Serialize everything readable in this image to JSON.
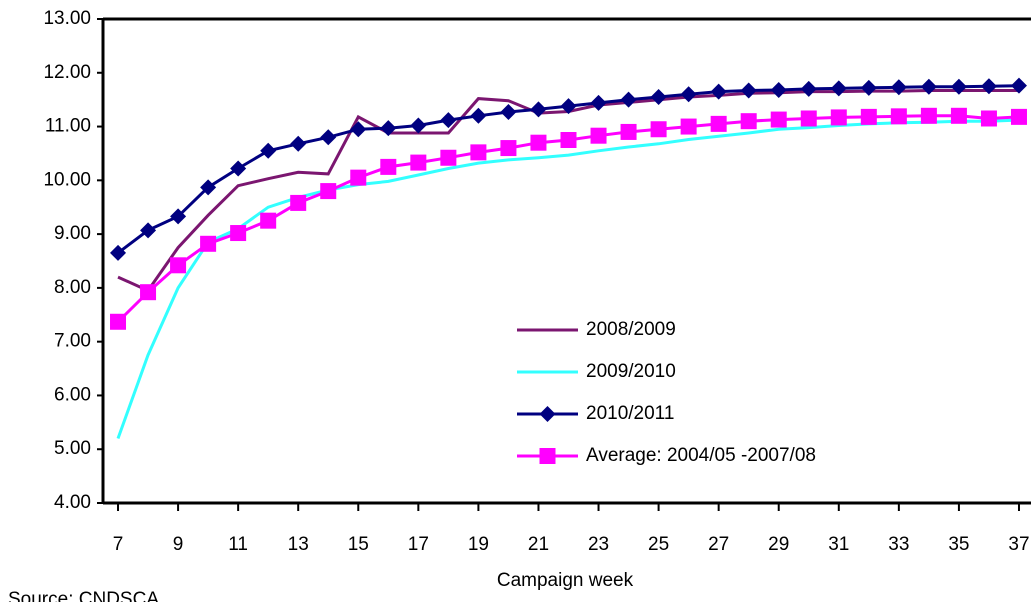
{
  "chart_data": {
    "type": "line",
    "x_label": "Campaign week",
    "source": "Source: CNDSCA",
    "x": [
      7,
      8,
      9,
      10,
      11,
      12,
      13,
      14,
      15,
      16,
      17,
      18,
      19,
      20,
      21,
      22,
      23,
      24,
      25,
      26,
      27,
      28,
      29,
      30,
      31,
      32,
      33,
      34,
      35,
      36,
      37
    ],
    "xlim": [
      6.5,
      37.5
    ],
    "xticks": [
      7,
      9,
      11,
      13,
      15,
      17,
      19,
      21,
      23,
      25,
      27,
      29,
      31,
      33,
      35,
      37
    ],
    "ylim": [
      4,
      13
    ],
    "yticks": [
      {
        "value": 4,
        "label": "4.00"
      },
      {
        "value": 5,
        "label": "5.00"
      },
      {
        "value": 6,
        "label": "6.00"
      },
      {
        "value": 7,
        "label": "7.00"
      },
      {
        "value": 8,
        "label": "8.00"
      },
      {
        "value": 9,
        "label": "9.00"
      },
      {
        "value": 10,
        "label": "10.00"
      },
      {
        "value": 11,
        "label": "11.00"
      },
      {
        "value": 12,
        "label": "12.00"
      },
      {
        "value": 13,
        "label": "13.00"
      }
    ],
    "series": [
      {
        "name": "2008/2009",
        "color": "#7b1670",
        "marker": "none",
        "values": [
          8.2,
          7.95,
          8.75,
          9.35,
          9.9,
          10.03,
          10.15,
          10.12,
          11.18,
          10.88,
          10.88,
          10.88,
          11.52,
          11.48,
          11.25,
          11.28,
          11.4,
          11.45,
          11.5,
          11.55,
          11.58,
          11.62,
          11.63,
          11.65,
          11.65,
          11.66,
          11.66,
          11.67,
          11.67,
          11.67,
          11.67
        ]
      },
      {
        "name": "2009/2010",
        "color": "#33ffff",
        "marker": "none",
        "values": [
          5.2,
          6.75,
          8.0,
          8.85,
          9.1,
          9.5,
          9.68,
          9.82,
          9.92,
          9.98,
          10.1,
          10.22,
          10.32,
          10.38,
          10.42,
          10.47,
          10.55,
          10.62,
          10.68,
          10.76,
          10.82,
          10.88,
          10.95,
          10.98,
          11.02,
          11.05,
          11.07,
          11.08,
          11.1,
          11.1,
          11.12
        ]
      },
      {
        "name": "2010/2011",
        "color": "#000080",
        "marker": "diamond",
        "values": [
          8.65,
          9.07,
          9.33,
          9.87,
          10.22,
          10.55,
          10.68,
          10.8,
          10.95,
          10.97,
          11.02,
          11.12,
          11.2,
          11.27,
          11.32,
          11.38,
          11.44,
          11.5,
          11.55,
          11.6,
          11.65,
          11.67,
          11.68,
          11.7,
          11.71,
          11.72,
          11.73,
          11.74,
          11.74,
          11.75,
          11.76
        ]
      },
      {
        "name": "Average: 2004/05 -2007/08",
        "color": "#ff00ff",
        "marker": "square",
        "values": [
          7.37,
          7.92,
          8.42,
          8.82,
          9.02,
          9.25,
          9.58,
          9.8,
          10.05,
          10.25,
          10.33,
          10.42,
          10.52,
          10.6,
          10.7,
          10.75,
          10.83,
          10.9,
          10.95,
          11.0,
          11.05,
          11.1,
          11.13,
          11.15,
          11.17,
          11.18,
          11.19,
          11.2,
          11.2,
          11.15,
          11.18
        ]
      }
    ]
  }
}
